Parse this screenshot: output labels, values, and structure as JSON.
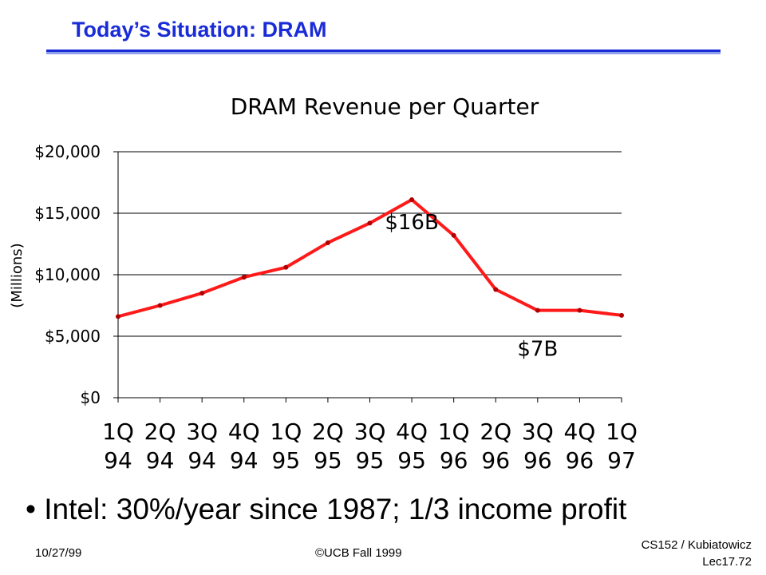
{
  "slide": {
    "title": "Today’s Situation: DRAM",
    "bullet_marker": "•",
    "bullet_text": "Intel: 30%/year since 1987; 1/3 income profit"
  },
  "footer": {
    "date": "10/27/99",
    "copyright": "©UCB Fall 1999",
    "course": "CS152 / Kubiatowicz",
    "lecture": "Lec17.72"
  },
  "colors": {
    "title": "#1a2bd8",
    "series_line": "#ff1a1a",
    "marker": "#b00000",
    "grid": "#000000"
  },
  "chart_data": {
    "type": "line",
    "title": "DRAM Revenue per Quarter",
    "ylabel": "(Millions)",
    "xlabel": "",
    "categories": [
      [
        "1Q",
        "94"
      ],
      [
        "2Q",
        "94"
      ],
      [
        "3Q",
        "94"
      ],
      [
        "4Q",
        "94"
      ],
      [
        "1Q",
        "95"
      ],
      [
        "2Q",
        "95"
      ],
      [
        "3Q",
        "95"
      ],
      [
        "4Q",
        "95"
      ],
      [
        "1Q",
        "96"
      ],
      [
        "2Q",
        "96"
      ],
      [
        "3Q",
        "96"
      ],
      [
        "4Q",
        "96"
      ],
      [
        "1Q",
        "97"
      ]
    ],
    "values": [
      6600,
      7500,
      8500,
      9800,
      10600,
      12600,
      14200,
      16100,
      13200,
      8800,
      7100,
      7100,
      6700
    ],
    "ylim": [
      0,
      20000
    ],
    "yticks": [
      0,
      5000,
      10000,
      15000,
      20000
    ],
    "ytick_labels": [
      "$0",
      "$5,000",
      "$10,000",
      "$15,000",
      "$20,000"
    ],
    "grid": "horizontal",
    "legend": "none",
    "annotations": [
      {
        "text": "$16B",
        "category_index": 7
      },
      {
        "text": "$7B",
        "category_index": 10
      }
    ]
  }
}
